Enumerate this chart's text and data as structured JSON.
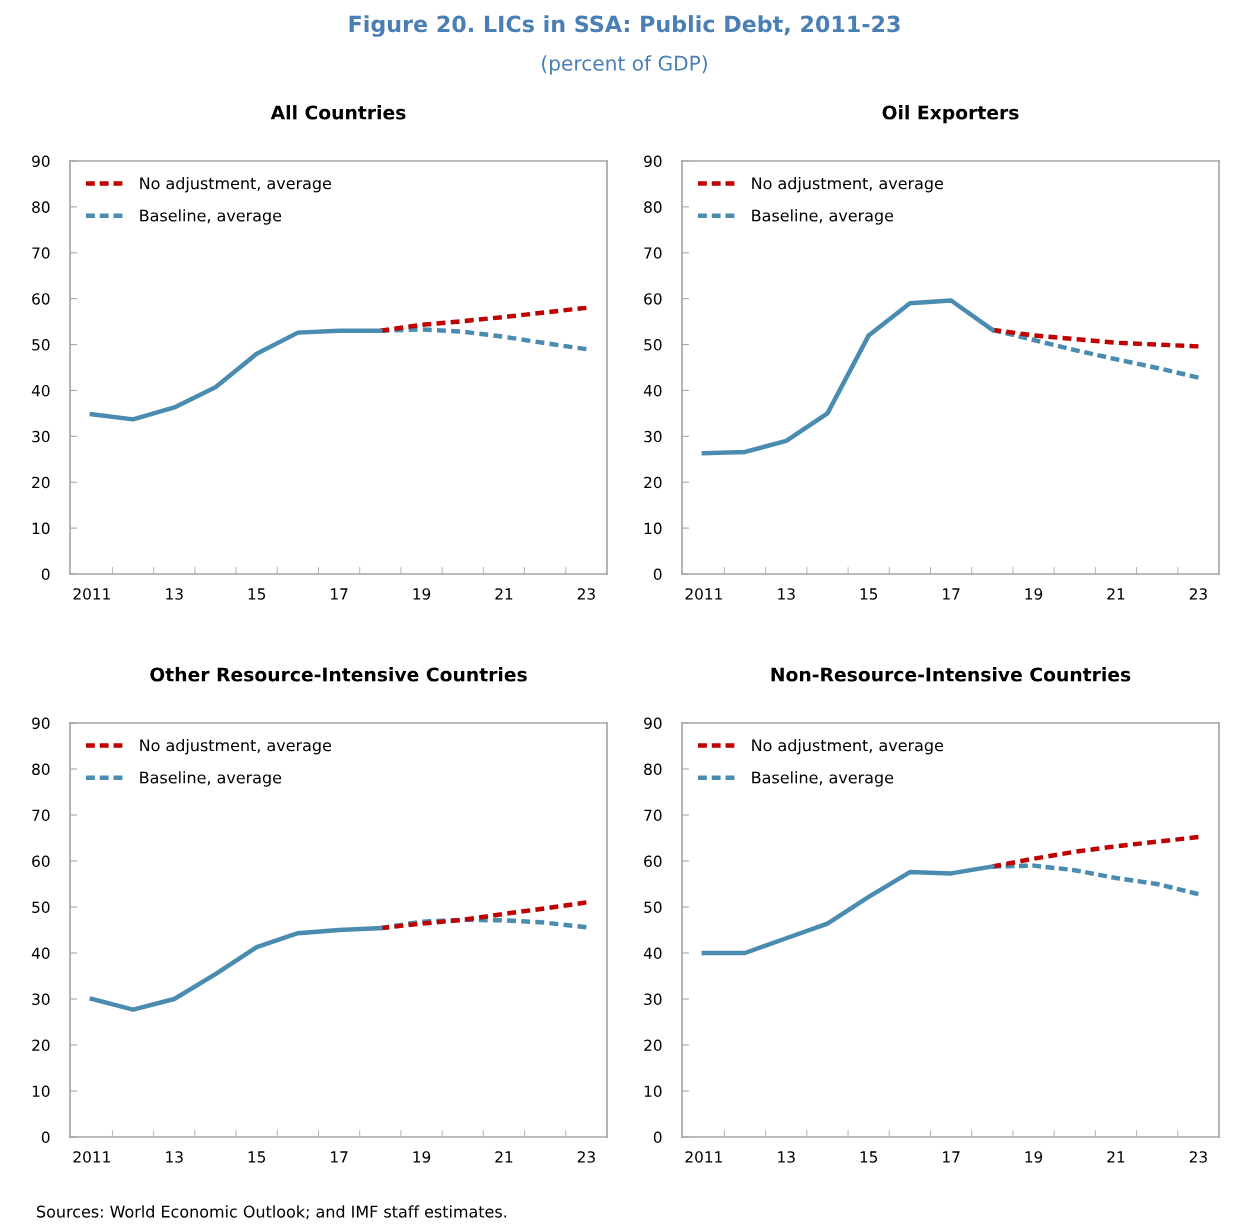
{
  "chart_data": [
    {
      "type": "line",
      "title": "All Countries",
      "annotations": [
        "Figure 20. LICs in SSA: Public Debt, 2011-23",
        "(percent of GDP)"
      ],
      "legend": "top left",
      "grid": false,
      "xlim": [
        2010.47,
        2023.5
      ],
      "ylim": [
        0,
        90
      ],
      "yticks": [
        0,
        10,
        20,
        30,
        40,
        50,
        60,
        70,
        80,
        90
      ],
      "xticks": [
        {
          "value": 2011,
          "label": "2011"
        },
        {
          "value": 2013,
          "label": "13"
        },
        {
          "value": 2015,
          "label": "15"
        },
        {
          "value": 2017,
          "label": "17"
        },
        {
          "value": 2019,
          "label": "19"
        },
        {
          "value": 2021,
          "label": "21"
        },
        {
          "value": 2023,
          "label": "23"
        },
        {
          "value": 2011.5,
          "label": null
        },
        {
          "value": 2012.5,
          "label": null
        },
        {
          "value": 2013.5,
          "label": null
        },
        {
          "value": 2014.5,
          "label": null
        },
        {
          "value": 2015.5,
          "label": null
        },
        {
          "value": 2016.5,
          "label": null
        },
        {
          "value": 2017.5,
          "label": null
        },
        {
          "value": 2018.5,
          "label": null
        },
        {
          "value": 2019.5,
          "label": null
        },
        {
          "value": 2020.5,
          "label": null
        },
        {
          "value": 2021.5,
          "label": null
        },
        {
          "value": 2022.5,
          "label": null
        }
      ],
      "series": [
        {
          "color": "#4a8bb0",
          "line_style": "solid",
          "x": [
            2011,
            2012,
            2013,
            2014,
            2015,
            2016,
            2017,
            2018
          ],
          "values": [
            34.8,
            33.7,
            36.3,
            40.7,
            48,
            52.6,
            53,
            53
          ]
        },
        {
          "name": "No adjustment, average",
          "color": "#c00000",
          "line_style": "dashed",
          "x": [
            2018,
            2019,
            2020,
            2021,
            2022,
            2023
          ],
          "values": [
            53,
            54.3,
            55.1,
            56,
            57,
            58
          ]
        },
        {
          "name": "Baseline, average",
          "color": "#4a8bb0",
          "line_style": "dashed",
          "x": [
            2018,
            2019,
            2020,
            2021,
            2022,
            2023
          ],
          "values": [
            53,
            53.3,
            52.8,
            51.7,
            50.3,
            49
          ]
        }
      ]
    },
    {
      "type": "line",
      "title": "Oil Exporters",
      "legend": "top left",
      "grid": false,
      "xlim": [
        2010.47,
        2023.5
      ],
      "ylim": [
        0,
        90
      ],
      "yticks": [
        0,
        10,
        20,
        30,
        40,
        50,
        60,
        70,
        80,
        90
      ],
      "xticks": [
        {
          "value": 2011,
          "label": "2011"
        },
        {
          "value": 2013,
          "label": "13"
        },
        {
          "value": 2015,
          "label": "15"
        },
        {
          "value": 2017,
          "label": "17"
        },
        {
          "value": 2019,
          "label": "19"
        },
        {
          "value": 2021,
          "label": "21"
        },
        {
          "value": 2023,
          "label": "23"
        },
        {
          "value": 2011.5,
          "label": null
        },
        {
          "value": 2012.5,
          "label": null
        },
        {
          "value": 2013.5,
          "label": null
        },
        {
          "value": 2014.5,
          "label": null
        },
        {
          "value": 2015.5,
          "label": null
        },
        {
          "value": 2016.5,
          "label": null
        },
        {
          "value": 2017.5,
          "label": null
        },
        {
          "value": 2018.5,
          "label": null
        },
        {
          "value": 2019.5,
          "label": null
        },
        {
          "value": 2020.5,
          "label": null
        },
        {
          "value": 2021.5,
          "label": null
        },
        {
          "value": 2022.5,
          "label": null
        }
      ],
      "series": [
        {
          "color": "#4a8bb0",
          "line_style": "solid",
          "x": [
            2011,
            2012,
            2013,
            2014,
            2015,
            2016,
            2017,
            2018
          ],
          "values": [
            26.3,
            26.6,
            29,
            35,
            52,
            59,
            59.6,
            53.2
          ]
        },
        {
          "name": "No adjustment, average",
          "color": "#c00000",
          "line_style": "dashed",
          "x": [
            2018,
            2019,
            2020,
            2021,
            2022,
            2023
          ],
          "values": [
            53.2,
            52,
            51.2,
            50.4,
            50,
            49.6
          ]
        },
        {
          "name": "Baseline, average",
          "color": "#4a8bb0",
          "line_style": "dashed",
          "x": [
            2018,
            2019,
            2020,
            2021,
            2022,
            2023
          ],
          "values": [
            53.2,
            51,
            48.8,
            46.8,
            44.9,
            42.8
          ]
        }
      ]
    },
    {
      "type": "line",
      "title": "Other Resource-Intensive Countries",
      "legend": "top left",
      "grid": false,
      "xlim": [
        2010.47,
        2023.5
      ],
      "ylim": [
        0,
        90
      ],
      "yticks": [
        0,
        10,
        20,
        30,
        40,
        50,
        60,
        70,
        80,
        90
      ],
      "xticks": [
        {
          "value": 2011,
          "label": "2011"
        },
        {
          "value": 2013,
          "label": "13"
        },
        {
          "value": 2015,
          "label": "15"
        },
        {
          "value": 2017,
          "label": "17"
        },
        {
          "value": 2019,
          "label": "19"
        },
        {
          "value": 2021,
          "label": "21"
        },
        {
          "value": 2023,
          "label": "23"
        },
        {
          "value": 2011.5,
          "label": null
        },
        {
          "value": 2012.5,
          "label": null
        },
        {
          "value": 2013.5,
          "label": null
        },
        {
          "value": 2014.5,
          "label": null
        },
        {
          "value": 2015.5,
          "label": null
        },
        {
          "value": 2016.5,
          "label": null
        },
        {
          "value": 2017.5,
          "label": null
        },
        {
          "value": 2018.5,
          "label": null
        },
        {
          "value": 2019.5,
          "label": null
        },
        {
          "value": 2020.5,
          "label": null
        },
        {
          "value": 2021.5,
          "label": null
        },
        {
          "value": 2022.5,
          "label": null
        }
      ],
      "series": [
        {
          "color": "#4a8bb0",
          "line_style": "solid",
          "x": [
            2011,
            2012,
            2013,
            2014,
            2015,
            2016,
            2017,
            2018
          ],
          "values": [
            30,
            27.7,
            30,
            35.4,
            41.3,
            44.3,
            45,
            45.4
          ]
        },
        {
          "name": "No adjustment, average",
          "color": "#c00000",
          "line_style": "dashed",
          "x": [
            2018,
            2019,
            2020,
            2021,
            2022,
            2023
          ],
          "values": [
            45.4,
            46.4,
            47.2,
            48.5,
            49.7,
            51
          ]
        },
        {
          "name": "Baseline, average",
          "color": "#4a8bb0",
          "line_style": "dashed",
          "x": [
            2018,
            2019,
            2020,
            2021,
            2022,
            2023
          ],
          "values": [
            45.4,
            46.8,
            47.2,
            47.1,
            46.6,
            45.6
          ]
        }
      ]
    },
    {
      "type": "line",
      "title": "Non-Resource-Intensive Countries",
      "annotations": [
        "Sources: World Economic Outlook; and IMF staff estimates."
      ],
      "legend": "top left",
      "grid": false,
      "xlim": [
        2010.47,
        2023.5
      ],
      "ylim": [
        0,
        90
      ],
      "yticks": [
        0,
        10,
        20,
        30,
        40,
        50,
        60,
        70,
        80,
        90
      ],
      "xticks": [
        {
          "value": 2011,
          "label": "2011"
        },
        {
          "value": 2013,
          "label": "13"
        },
        {
          "value": 2015,
          "label": "15"
        },
        {
          "value": 2017,
          "label": "17"
        },
        {
          "value": 2019,
          "label": "19"
        },
        {
          "value": 2021,
          "label": "21"
        },
        {
          "value": 2023,
          "label": "23"
        },
        {
          "value": 2011.5,
          "label": null
        },
        {
          "value": 2012.5,
          "label": null
        },
        {
          "value": 2013.5,
          "label": null
        },
        {
          "value": 2014.5,
          "label": null
        },
        {
          "value": 2015.5,
          "label": null
        },
        {
          "value": 2016.5,
          "label": null
        },
        {
          "value": 2017.5,
          "label": null
        },
        {
          "value": 2018.5,
          "label": null
        },
        {
          "value": 2019.5,
          "label": null
        },
        {
          "value": 2020.5,
          "label": null
        },
        {
          "value": 2021.5,
          "label": null
        },
        {
          "value": 2022.5,
          "label": null
        }
      ],
      "series": [
        {
          "color": "#4a8bb0",
          "line_style": "solid",
          "x": [
            2011,
            2012,
            2013,
            2014,
            2015,
            2016,
            2017,
            2018
          ],
          "values": [
            40,
            40,
            43.2,
            46.4,
            52.2,
            57.6,
            57.3,
            58.8
          ]
        },
        {
          "name": "No adjustment, average",
          "color": "#c00000",
          "line_style": "dashed",
          "x": [
            2018,
            2019,
            2020,
            2021,
            2022,
            2023
          ],
          "values": [
            58.8,
            60.5,
            62,
            63.2,
            64.2,
            65.2
          ]
        },
        {
          "name": "Baseline, average",
          "color": "#4a8bb0",
          "line_style": "dashed",
          "x": [
            2018,
            2019,
            2020,
            2021,
            2022,
            2023
          ],
          "values": [
            58.8,
            59,
            58,
            56.3,
            55,
            52.8
          ]
        }
      ]
    }
  ]
}
